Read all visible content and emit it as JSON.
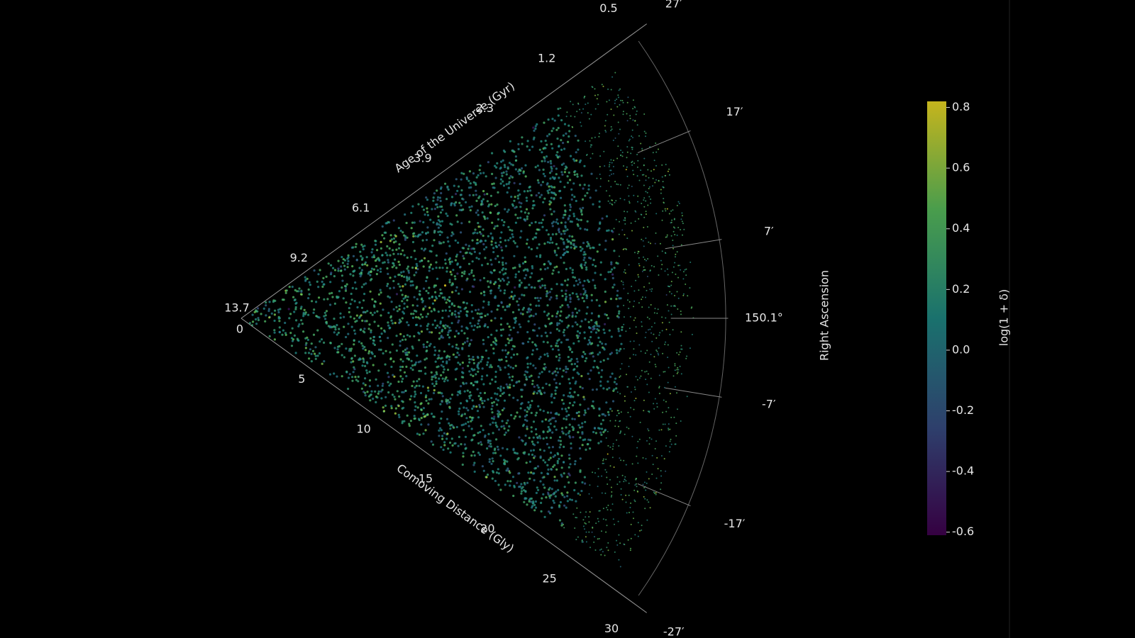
{
  "chart_data": {
    "type": "wedge",
    "axes": {
      "distance_label": "Comoving Distance (Gly)",
      "distance_lim": [
        0,
        30
      ],
      "distance_ticks": [
        0,
        5,
        10,
        15,
        20,
        25,
        30
      ],
      "age_label": "Age of the Universe (Gyr)",
      "age_ticks": [
        13.7,
        9.2,
        6.1,
        3.9,
        2.3,
        1.2,
        0.5
      ],
      "angle_label": "Right Ascension",
      "angle_lim": [
        -27,
        27
      ],
      "angle_ticks": [
        {
          "value": 27,
          "label": "27′"
        },
        {
          "value": 17,
          "label": "17′"
        },
        {
          "value": 7,
          "label": "7′"
        },
        {
          "value": 0,
          "label": "150.1°"
        },
        {
          "value": -7,
          "label": "-7′"
        },
        {
          "value": -17,
          "label": "-17′"
        },
        {
          "value": -27,
          "label": "-27′"
        }
      ]
    },
    "colorbar": {
      "label": "log(1 + δ)",
      "lim": [
        -0.61,
        0.82
      ],
      "ticks": [
        0.8,
        0.6,
        0.4,
        0.2,
        {
          "value": 0,
          "label": "0.0"
        },
        -0.2,
        -0.4,
        -0.6
      ],
      "colors": [
        "#440154",
        "#3b528b",
        "#21918c",
        "#5ec962",
        "#fde725"
      ]
    }
  }
}
